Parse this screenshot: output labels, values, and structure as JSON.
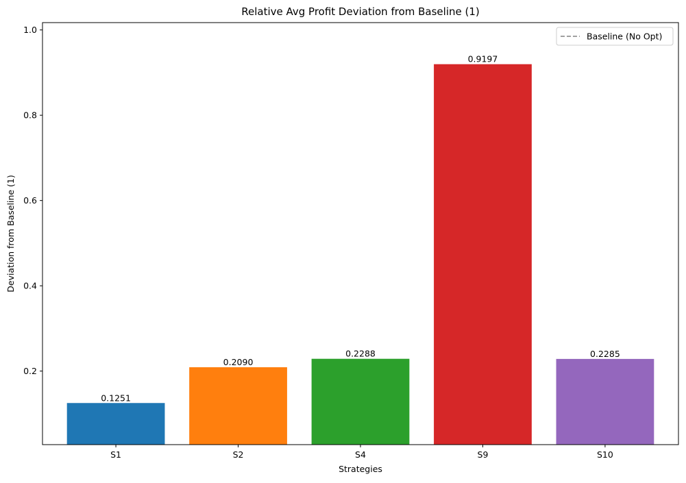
{
  "chart_data": {
    "type": "bar",
    "title": "Relative Avg Profit Deviation from Baseline (1)",
    "xlabel": "Strategies",
    "ylabel": "Deviation from Baseline (1)",
    "categories": [
      "S1",
      "S2",
      "S4",
      "S9",
      "S10"
    ],
    "values": [
      0.1251,
      0.209,
      0.2288,
      0.9197,
      0.2285
    ],
    "value_labels": [
      "0.1251",
      "0.2090",
      "0.2288",
      "0.9197",
      "0.2285"
    ],
    "bar_colors": [
      "#1f77b4",
      "#ff7f0e",
      "#2ca02c",
      "#d62728",
      "#9467bd"
    ],
    "ylim": [
      0.0275,
      1.0172
    ],
    "yticks": [
      0.2,
      0.4,
      0.6,
      0.8,
      1.0
    ],
    "ytick_labels": [
      "0.2",
      "0.4",
      "0.6",
      "0.8",
      "1.0"
    ],
    "grid": false,
    "legend": {
      "placement": "top-right",
      "entries": [
        {
          "label": "Baseline (No Opt)",
          "style": "dashed",
          "color": "#808080",
          "value": 1.0
        }
      ]
    }
  }
}
